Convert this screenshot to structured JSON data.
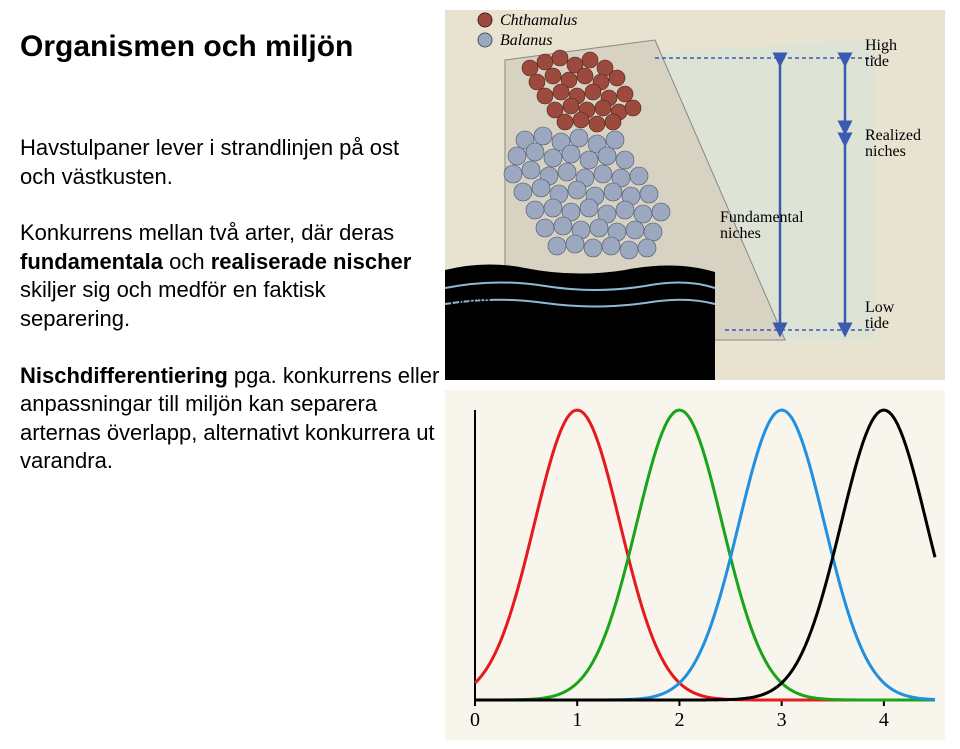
{
  "title": "Organismen och miljön",
  "para1_a": "Havstulpaner lever i strandlinjen på ost och västkusten.",
  "para2_a": "Konkurrens mellan två arter, där deras ",
  "para2_b": "fundamentala",
  "para2_c": " och ",
  "para2_d": "realiserade nischer",
  "para2_e": " skiljer sig och medför en faktisk separering.",
  "para3_a": "Nischdifferentiering",
  "para3_b": " pga. konkurrens eller anpassningar till miljön kan separera arternas överlapp, alternativt konkurrera ut varandra.",
  "top_fig": {
    "legend1": "Chthamalus",
    "legend2": "Balanus",
    "ocean": "Ocean",
    "fund": "Fundamental niches",
    "real": "Realized niches",
    "high": "High tide",
    "low": "Low tide",
    "chthamalus_color": "#9d4a3e",
    "balanus_color": "#9ca8c0",
    "ocean_color": "#bdd8e8",
    "sky": "#dde3d5",
    "rock": "#d8d2c2",
    "paper": "#e8e2d0"
  },
  "bottom_fig": {
    "bg": "#f8f5ec",
    "axis": "#000000",
    "grid": "#e0ddd0",
    "curves": [
      {
        "color": "#e41a1c",
        "mean": 1.0
      },
      {
        "color": "#1aa41a",
        "mean": 2.0
      },
      {
        "color": "#2090e0",
        "mean": 3.0
      },
      {
        "color": "#000000",
        "mean": 4.0
      }
    ],
    "sigma": 0.42,
    "xlim": [
      0,
      4.5
    ],
    "xticks": [
      "0",
      "1",
      "2",
      "3",
      "4"
    ],
    "stroke_width": 3
  }
}
